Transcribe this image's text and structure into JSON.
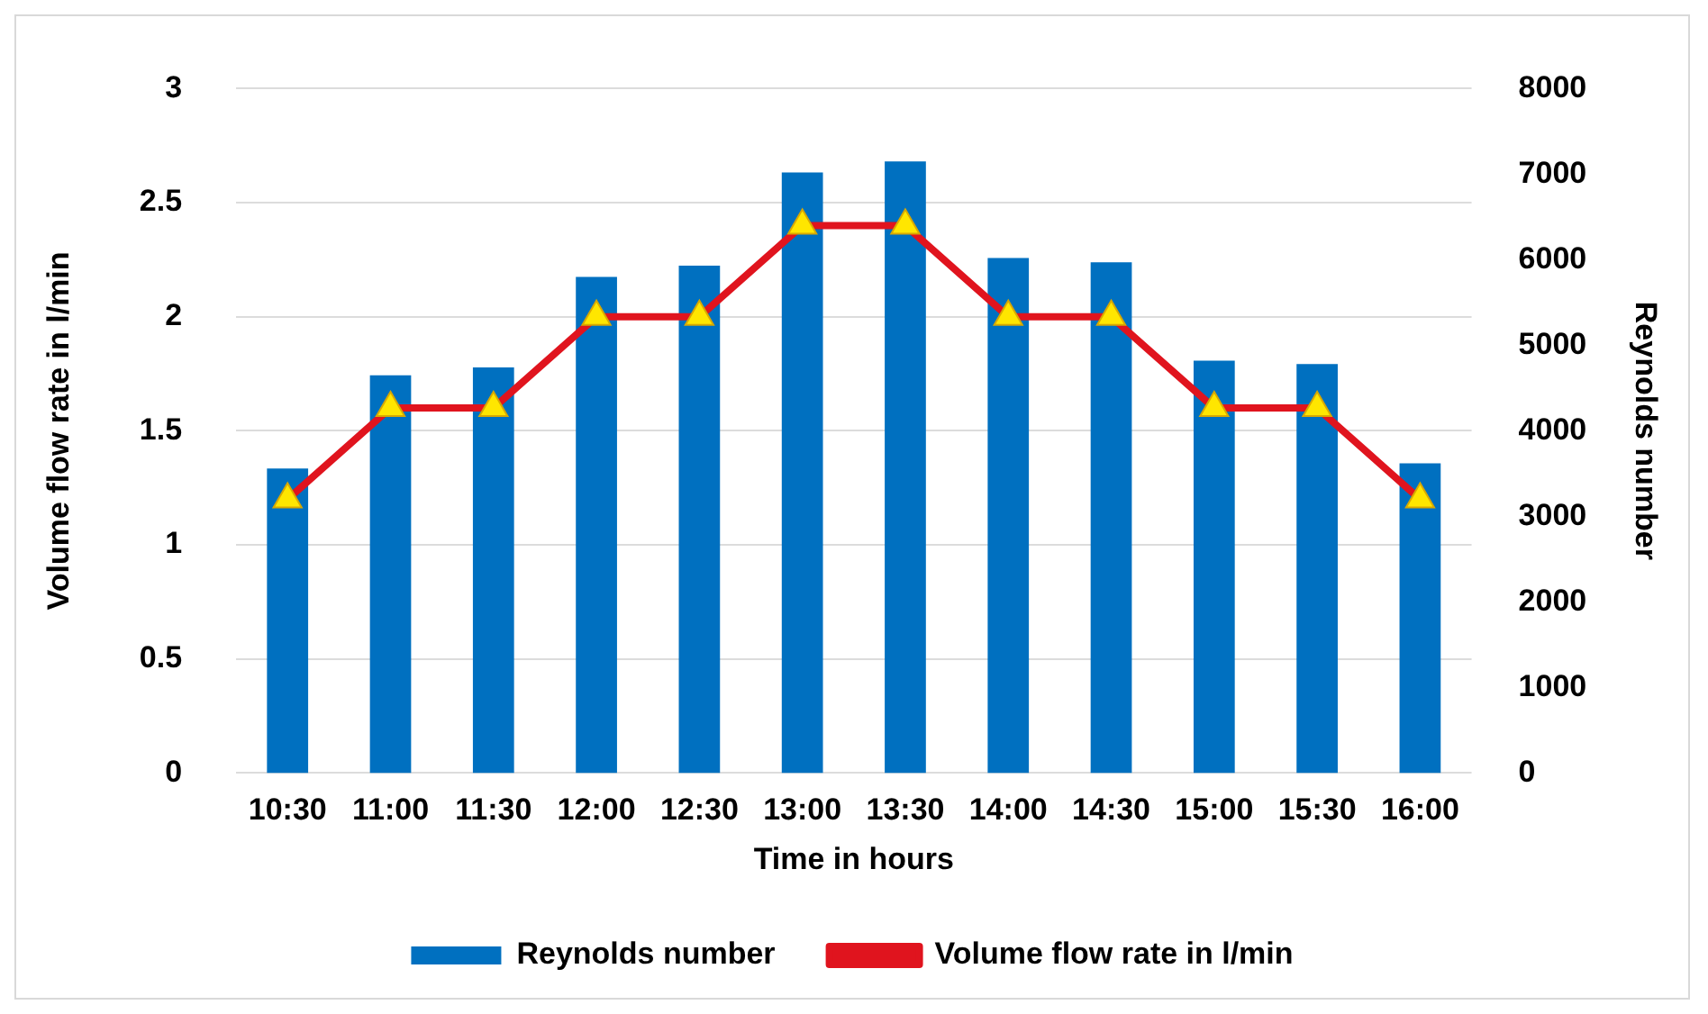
{
  "chart_data": {
    "type": "bar",
    "xlabel": "Time in hours",
    "ylabel": "Volume flow rate in l/min",
    "y2label": "Reynolds number",
    "categories": [
      "10:30",
      "11:00",
      "11:30",
      "12:00",
      "12:30",
      "13:00",
      "13:30",
      "14:00",
      "14:30",
      "15:00",
      "15:30",
      "16:00"
    ],
    "series": [
      {
        "name": "Reynolds number",
        "axis": "y2",
        "color": "#0070c0",
        "values": [
          3560,
          4650,
          4740,
          5800,
          5930,
          7020,
          7150,
          6020,
          5970,
          4820,
          4780,
          3620
        ]
      },
      {
        "name": "Volume flow rate in l/min",
        "type": "line",
        "axis": "y",
        "color": "#e0141e",
        "marker": "triangle",
        "values": [
          1.2,
          1.6,
          1.6,
          2.0,
          2.0,
          2.4,
          2.4,
          2.0,
          2.0,
          1.6,
          1.6,
          1.2
        ]
      }
    ],
    "ylim": [
      0,
      3
    ],
    "yticks": [
      0,
      0.5,
      1,
      1.5,
      2,
      2.5,
      3
    ],
    "y2lim": [
      0,
      8000
    ],
    "y2ticks": [
      0,
      1000,
      2000,
      3000,
      4000,
      5000,
      6000,
      7000,
      8000
    ],
    "grid": "y",
    "legend": "bottom"
  }
}
